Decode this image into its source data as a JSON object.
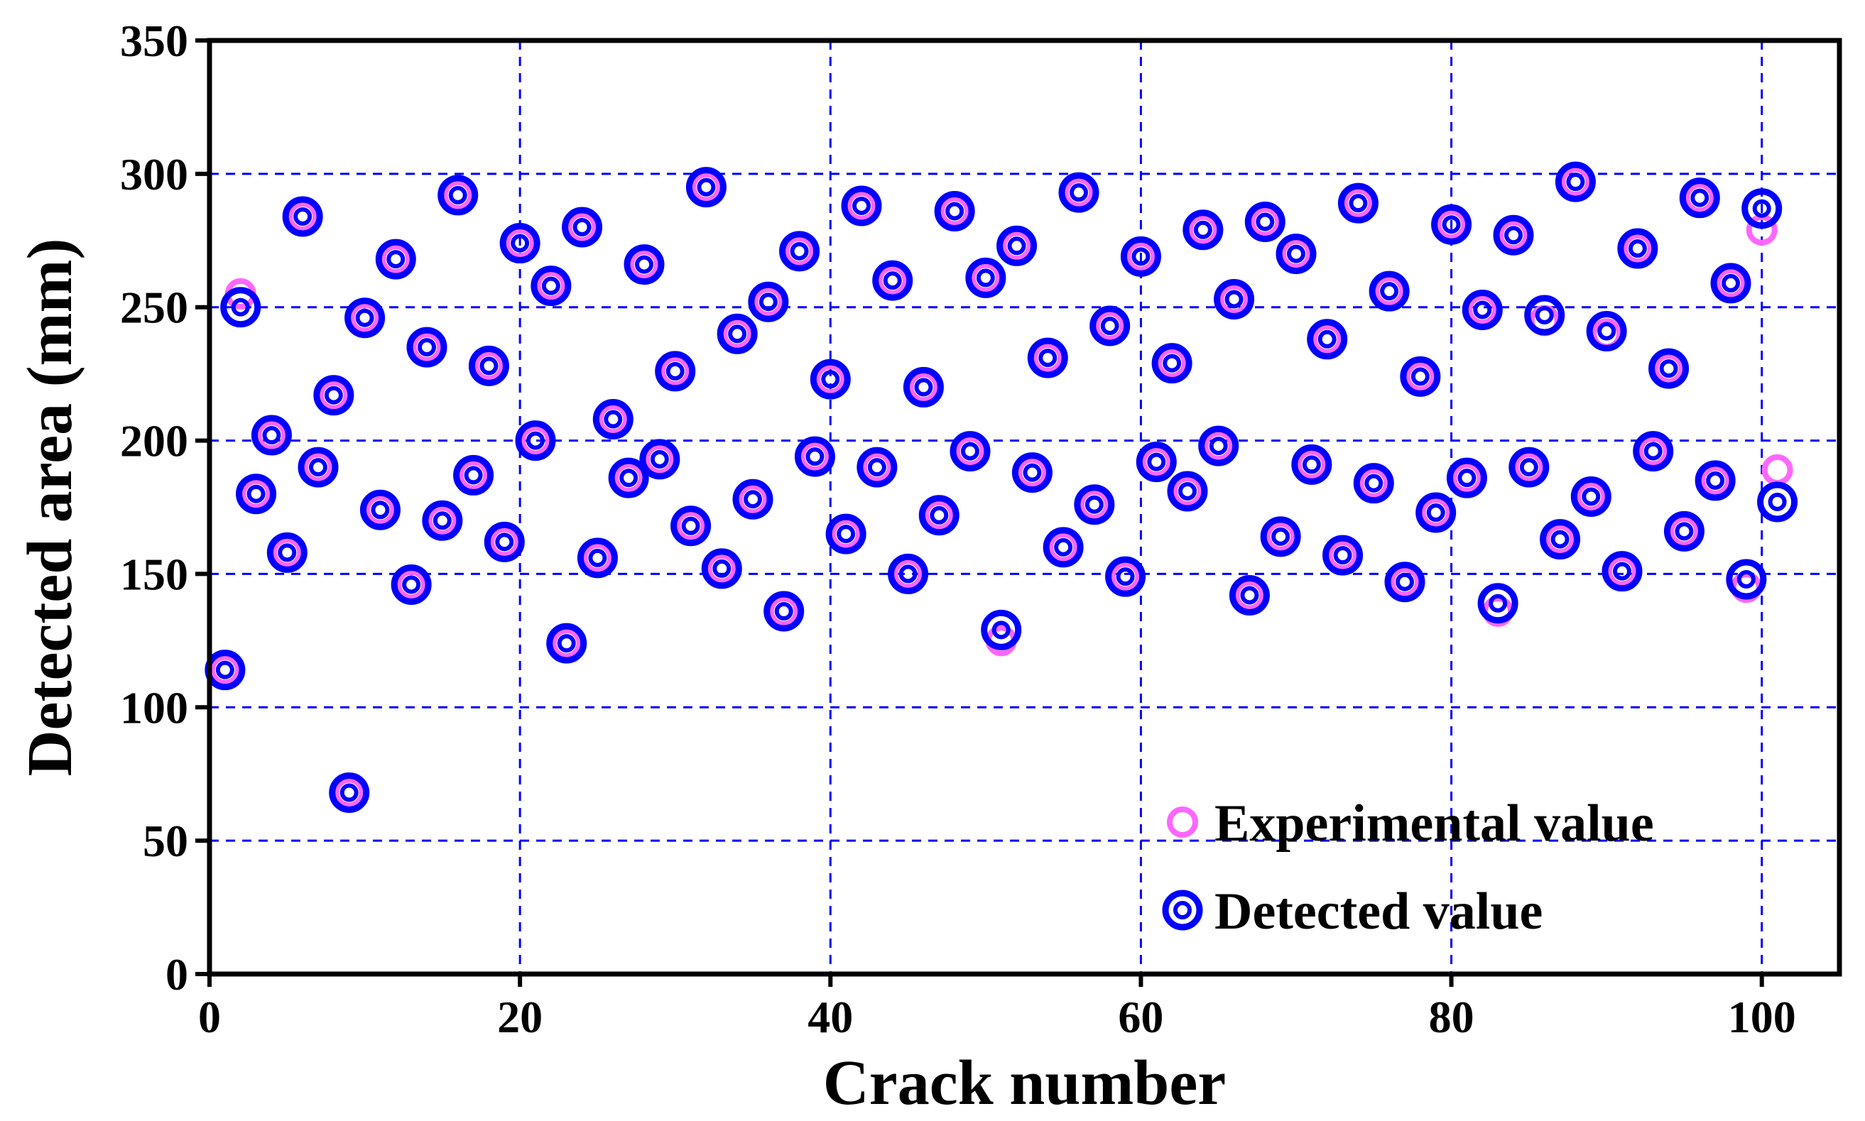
{
  "chart_data": {
    "type": "scatter",
    "xlabel": "Crack number",
    "ylabel": "Detected area (mm)",
    "xlim": [
      0,
      105
    ],
    "ylim": [
      0,
      350
    ],
    "x_ticks": [
      0,
      20,
      40,
      60,
      80,
      100
    ],
    "y_ticks": [
      0,
      50,
      100,
      150,
      200,
      250,
      300,
      350
    ],
    "grid": true,
    "legend_position": "bottom-right",
    "series": [
      {
        "name": "Experimental value",
        "marker": "ring",
        "color": "#ff66ff",
        "x": [
          1,
          2,
          3,
          4,
          5,
          6,
          7,
          8,
          9,
          10,
          11,
          12,
          13,
          14,
          15,
          16,
          17,
          18,
          19,
          20,
          21,
          22,
          23,
          24,
          25,
          26,
          27,
          28,
          29,
          30,
          31,
          32,
          33,
          34,
          35,
          36,
          37,
          38,
          39,
          40,
          41,
          42,
          43,
          44,
          45,
          46,
          47,
          48,
          49,
          50,
          51,
          52,
          53,
          54,
          55,
          56,
          57,
          58,
          59,
          60,
          61,
          62,
          63,
          64,
          65,
          66,
          67,
          68,
          69,
          70,
          71,
          72,
          73,
          74,
          75,
          76,
          77,
          78,
          79,
          80,
          81,
          82,
          83,
          84,
          85,
          86,
          87,
          88,
          89,
          90,
          91,
          92,
          93,
          94,
          95,
          96,
          97,
          98,
          99,
          100,
          101
        ],
        "y": [
          114,
          255,
          180,
          202,
          158,
          284,
          190,
          217,
          68,
          246,
          174,
          268,
          146,
          235,
          170,
          292,
          187,
          228,
          162,
          274,
          200,
          258,
          124,
          280,
          156,
          208,
          186,
          266,
          193,
          226,
          168,
          295,
          152,
          240,
          178,
          252,
          136,
          271,
          194,
          223,
          165,
          288,
          190,
          260,
          150,
          220,
          172,
          286,
          196,
          261,
          125,
          273,
          188,
          231,
          160,
          293,
          176,
          243,
          149,
          269,
          192,
          229,
          181,
          279,
          198,
          253,
          142,
          282,
          164,
          270,
          191,
          238,
          157,
          289,
          184,
          256,
          147,
          224,
          173,
          281,
          186,
          249,
          136,
          277,
          190,
          245,
          163,
          297,
          179,
          240,
          151,
          272,
          196,
          227,
          166,
          291,
          185,
          259,
          145,
          279,
          189
        ]
      },
      {
        "name": "Detected value",
        "marker": "double-ring",
        "color": "#0000ff",
        "x": [
          1,
          2,
          3,
          4,
          5,
          6,
          7,
          8,
          9,
          10,
          11,
          12,
          13,
          14,
          15,
          16,
          17,
          18,
          19,
          20,
          21,
          22,
          23,
          24,
          25,
          26,
          27,
          28,
          29,
          30,
          31,
          32,
          33,
          34,
          35,
          36,
          37,
          38,
          39,
          40,
          41,
          42,
          43,
          44,
          45,
          46,
          47,
          48,
          49,
          50,
          51,
          52,
          53,
          54,
          55,
          56,
          57,
          58,
          59,
          60,
          61,
          62,
          63,
          64,
          65,
          66,
          67,
          68,
          69,
          70,
          71,
          72,
          73,
          74,
          75,
          76,
          77,
          78,
          79,
          80,
          81,
          82,
          83,
          84,
          85,
          86,
          87,
          88,
          89,
          90,
          91,
          92,
          93,
          94,
          95,
          96,
          97,
          98,
          99,
          100,
          101
        ],
        "y": [
          114,
          250,
          180,
          202,
          158,
          284,
          190,
          217,
          68,
          246,
          174,
          268,
          146,
          235,
          170,
          292,
          187,
          228,
          162,
          274,
          200,
          258,
          124,
          280,
          156,
          208,
          186,
          266,
          193,
          226,
          168,
          295,
          152,
          240,
          178,
          252,
          136,
          271,
          194,
          223,
          165,
          288,
          190,
          260,
          150,
          220,
          172,
          286,
          196,
          261,
          129,
          273,
          188,
          231,
          160,
          293,
          176,
          243,
          149,
          269,
          192,
          229,
          181,
          279,
          198,
          253,
          142,
          282,
          164,
          270,
          191,
          238,
          157,
          289,
          184,
          256,
          147,
          224,
          173,
          281,
          186,
          249,
          139,
          277,
          190,
          247,
          163,
          297,
          179,
          241,
          151,
          272,
          196,
          227,
          166,
          291,
          185,
          259,
          148,
          287,
          177
        ]
      }
    ]
  }
}
